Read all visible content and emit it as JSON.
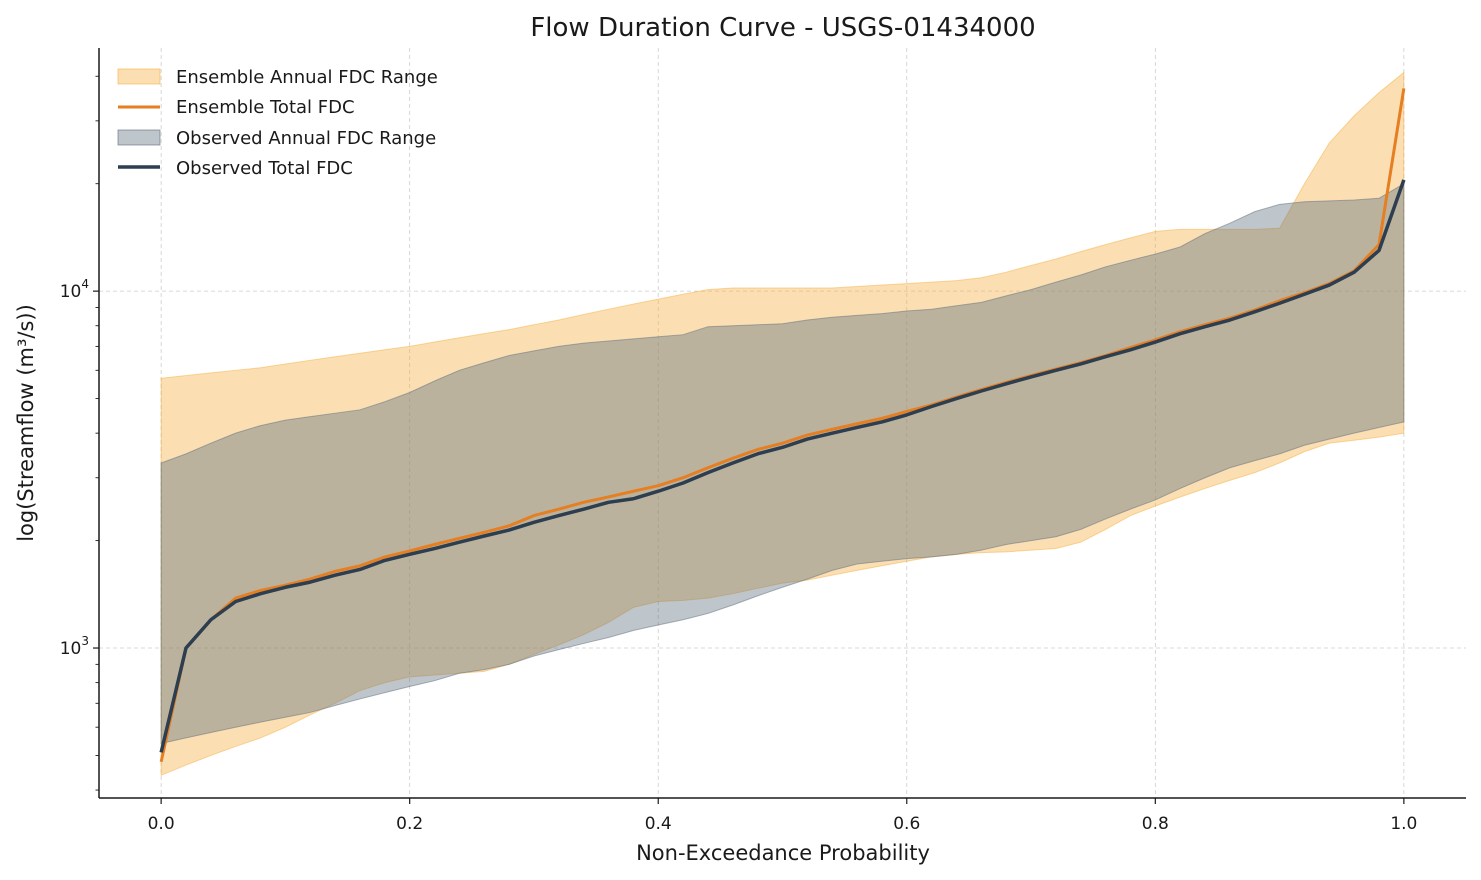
{
  "chart_data": {
    "type": "area",
    "title": "Flow Duration Curve - USGS-01434000",
    "xlabel": "Non-Exceedance Probability",
    "ylabel": "log(Streamflow (m³/s))",
    "xlim": [
      -0.05,
      1.05
    ],
    "ylim": [
      380,
      48000
    ],
    "yscale": "log",
    "grid": true,
    "legend_position": "top-left",
    "x_ticks": [
      "0.0",
      "0.2",
      "0.4",
      "0.6",
      "0.8",
      "1.0"
    ],
    "y_ticks": [
      {
        "value": 1000,
        "base": "10",
        "exp": "3"
      },
      {
        "value": 10000,
        "base": "10",
        "exp": "4"
      }
    ],
    "x": [
      0.0,
      0.02,
      0.04,
      0.06,
      0.08,
      0.1,
      0.12,
      0.14,
      0.16,
      0.18,
      0.2,
      0.22,
      0.24,
      0.26,
      0.28,
      0.3,
      0.32,
      0.34,
      0.36,
      0.38,
      0.4,
      0.42,
      0.44,
      0.46,
      0.48,
      0.5,
      0.52,
      0.54,
      0.56,
      0.58,
      0.6,
      0.62,
      0.64,
      0.66,
      0.68,
      0.7,
      0.72,
      0.74,
      0.76,
      0.78,
      0.8,
      0.82,
      0.84,
      0.86,
      0.88,
      0.9,
      0.92,
      0.94,
      0.96,
      0.98,
      1.0
    ],
    "series": [
      {
        "name": "Ensemble Annual FDC Range",
        "kind": "band",
        "color": "#f5b041",
        "opacity": 0.4,
        "lower": [
          440,
          470,
          500,
          530,
          560,
          600,
          650,
          700,
          760,
          800,
          830,
          840,
          850,
          860,
          900,
          960,
          1020,
          1090,
          1180,
          1300,
          1350,
          1360,
          1380,
          1420,
          1470,
          1520,
          1550,
          1600,
          1650,
          1700,
          1750,
          1800,
          1830,
          1850,
          1860,
          1880,
          1900,
          1980,
          2150,
          2350,
          2500,
          2650,
          2800,
          2950,
          3100,
          3300,
          3550,
          3750,
          3820,
          3900,
          4000
        ],
        "upper": [
          5700,
          5800,
          5900,
          6000,
          6100,
          6250,
          6400,
          6550,
          6700,
          6850,
          7000,
          7200,
          7400,
          7600,
          7800,
          8050,
          8300,
          8600,
          8900,
          9200,
          9500,
          9800,
          10100,
          10200,
          10200,
          10200,
          10200,
          10200,
          10300,
          10400,
          10500,
          10600,
          10700,
          10900,
          11300,
          11800,
          12300,
          12900,
          13500,
          14100,
          14700,
          14900,
          14900,
          14900,
          14900,
          15000,
          20000,
          26000,
          31000,
          36000,
          41000
        ]
      },
      {
        "name": "Ensemble Total FDC",
        "kind": "line",
        "color": "#e67e22",
        "width": 3,
        "values": [
          480,
          1000,
          1200,
          1380,
          1450,
          1500,
          1560,
          1640,
          1700,
          1800,
          1870,
          1950,
          2030,
          2110,
          2200,
          2350,
          2450,
          2560,
          2650,
          2750,
          2850,
          3000,
          3200,
          3400,
          3600,
          3750,
          3950,
          4100,
          4250,
          4400,
          4600,
          4800,
          5050,
          5300,
          5550,
          5800,
          6050,
          6300,
          6600,
          6950,
          7300,
          7700,
          8050,
          8400,
          8850,
          9400,
          9900,
          10500,
          11400,
          13500,
          37000
        ]
      },
      {
        "name": "Observed Annual FDC Range",
        "kind": "band",
        "color": "#5d6d7e",
        "opacity": 0.4,
        "lower": [
          540,
          560,
          580,
          600,
          620,
          640,
          660,
          690,
          720,
          750,
          780,
          810,
          850,
          870,
          900,
          950,
          990,
          1030,
          1070,
          1120,
          1160,
          1200,
          1250,
          1320,
          1400,
          1480,
          1560,
          1650,
          1720,
          1750,
          1780,
          1800,
          1830,
          1880,
          1950,
          2000,
          2050,
          2150,
          2300,
          2450,
          2600,
          2800,
          3000,
          3200,
          3350,
          3500,
          3700,
          3850,
          4000,
          4150,
          4300
        ],
        "upper": [
          3300,
          3500,
          3750,
          4000,
          4200,
          4350,
          4450,
          4550,
          4650,
          4900,
          5200,
          5600,
          6000,
          6300,
          6600,
          6800,
          7000,
          7150,
          7250,
          7350,
          7450,
          7550,
          7950,
          8000,
          8050,
          8100,
          8300,
          8450,
          8550,
          8650,
          8800,
          8900,
          9100,
          9300,
          9700,
          10100,
          10600,
          11100,
          11700,
          12200,
          12700,
          13300,
          14500,
          15500,
          16700,
          17500,
          17800,
          17900,
          18000,
          18200,
          20000
        ]
      },
      {
        "name": "Observed Total FDC",
        "kind": "line",
        "color": "#2c3e50",
        "width": 3.5,
        "values": [
          510,
          1000,
          1200,
          1350,
          1420,
          1480,
          1530,
          1600,
          1660,
          1760,
          1830,
          1900,
          1980,
          2060,
          2140,
          2250,
          2350,
          2450,
          2560,
          2620,
          2750,
          2900,
          3100,
          3300,
          3500,
          3650,
          3850,
          4000,
          4150,
          4300,
          4500,
          4750,
          5000,
          5250,
          5500,
          5750,
          6000,
          6250,
          6550,
          6850,
          7200,
          7600,
          7950,
          8300,
          8750,
          9250,
          9800,
          10400,
          11300,
          13000,
          20500
        ]
      }
    ]
  }
}
